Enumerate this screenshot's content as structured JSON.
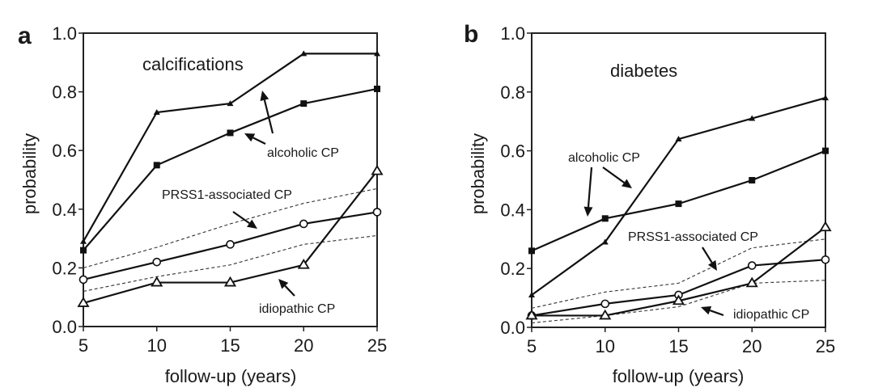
{
  "chart_data": [
    {
      "type": "line",
      "panel": "a",
      "title": "calcifications",
      "xlabel": "follow-up (years)",
      "ylabel": "probability",
      "x": [
        5,
        10,
        15,
        20,
        25
      ],
      "xlim": [
        5,
        25
      ],
      "ylim": [
        0,
        1.0
      ],
      "xticks": [
        "5",
        "10",
        "15",
        "20",
        "25"
      ],
      "yticks": [
        "0.0",
        "0.2",
        "0.4",
        "0.6",
        "0.8",
        "1.0"
      ],
      "ytick_values": [
        0,
        0.2,
        0.4,
        0.6,
        0.8,
        1.0
      ],
      "grid": false,
      "series": [
        {
          "name": "alcoholic CP (filled triangle)",
          "marker": "filled-triangle",
          "style": "solid",
          "values": [
            0.29,
            0.73,
            0.76,
            0.93,
            0.93
          ]
        },
        {
          "name": "alcoholic CP (filled square)",
          "marker": "filled-square",
          "style": "solid",
          "values": [
            0.26,
            0.55,
            0.66,
            0.76,
            0.81
          ]
        },
        {
          "name": "PRSS1-associated CP",
          "marker": "open-circle",
          "style": "solid",
          "values": [
            0.16,
            0.22,
            0.28,
            0.35,
            0.39
          ]
        },
        {
          "name": "PRSS1-associated CP upper bound",
          "marker": "none",
          "style": "dashed",
          "values": [
            0.2,
            0.27,
            0.35,
            0.42,
            0.47
          ]
        },
        {
          "name": "PRSS1-associated CP lower bound",
          "marker": "none",
          "style": "dashed",
          "values": [
            0.12,
            0.17,
            0.21,
            0.28,
            0.31
          ]
        },
        {
          "name": "idiopathic CP",
          "marker": "open-triangle",
          "style": "solid",
          "values": [
            0.08,
            0.15,
            0.15,
            0.21,
            0.53
          ]
        }
      ],
      "annotations": [
        {
          "text": "alcoholic CP",
          "points_to": [
            "alcoholic CP (filled triangle)",
            "alcoholic CP (filled square)"
          ]
        },
        {
          "text": "PRSS1-associated CP",
          "points_to": [
            "PRSS1-associated CP"
          ]
        },
        {
          "text": "idiopathic CP",
          "points_to": [
            "idiopathic CP"
          ]
        }
      ]
    },
    {
      "type": "line",
      "panel": "b",
      "title": "diabetes",
      "xlabel": "follow-up (years)",
      "ylabel": "probability",
      "x": [
        5,
        10,
        15,
        20,
        25
      ],
      "xlim": [
        5,
        25
      ],
      "ylim": [
        0,
        1.0
      ],
      "xticks": [
        "5",
        "10",
        "15",
        "20",
        "25"
      ],
      "yticks": [
        "0.0",
        "0.2",
        "0.4",
        "0.6",
        "0.8",
        "1.0"
      ],
      "ytick_values": [
        0,
        0.2,
        0.4,
        0.6,
        0.8,
        1.0
      ],
      "grid": false,
      "series": [
        {
          "name": "alcoholic CP (filled triangle)",
          "marker": "filled-triangle",
          "style": "solid",
          "values": [
            0.11,
            0.29,
            0.64,
            0.71,
            0.78
          ]
        },
        {
          "name": "alcoholic CP (filled square)",
          "marker": "filled-square",
          "style": "solid",
          "values": [
            0.26,
            0.37,
            0.42,
            0.5,
            0.6
          ]
        },
        {
          "name": "PRSS1-associated CP",
          "marker": "open-circle",
          "style": "solid",
          "values": [
            0.04,
            0.08,
            0.11,
            0.21,
            0.23
          ]
        },
        {
          "name": "PRSS1-associated CP upper bound",
          "marker": "none",
          "style": "dashed",
          "values": [
            0.065,
            0.12,
            0.15,
            0.27,
            0.3
          ]
        },
        {
          "name": "PRSS1-associated CP lower bound",
          "marker": "none",
          "style": "dashed",
          "values": [
            0.015,
            0.04,
            0.07,
            0.15,
            0.16
          ]
        },
        {
          "name": "idiopathic CP",
          "marker": "open-triangle",
          "style": "solid",
          "values": [
            0.04,
            0.04,
            0.09,
            0.15,
            0.34
          ]
        }
      ],
      "annotations": [
        {
          "text": "alcoholic CP",
          "points_to": [
            "alcoholic CP (filled square)",
            "alcoholic CP (filled triangle)"
          ]
        },
        {
          "text": "PRSS1-associated CP",
          "points_to": [
            "PRSS1-associated CP"
          ]
        },
        {
          "text": "idiopathic CP",
          "points_to": [
            "idiopathic CP"
          ]
        }
      ]
    }
  ]
}
